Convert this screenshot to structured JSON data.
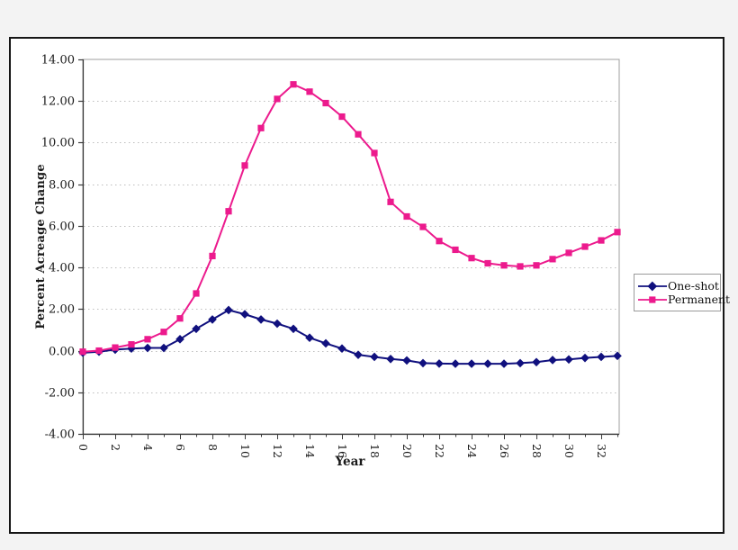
{
  "page": {
    "background": "#f3f3f3",
    "frame_border_color": "#161616",
    "plot_border_color": "#9f9f9f",
    "gridline_color": "#bdbdbd",
    "axis_color": "#3a3a3a",
    "tick_label_color": "#1a1a1a"
  },
  "chart_data": {
    "type": "line",
    "title": "",
    "xlabel": "Year",
    "ylabel": "Percent Acreage Change",
    "x": [
      0,
      1,
      2,
      3,
      4,
      5,
      6,
      7,
      8,
      9,
      10,
      11,
      12,
      13,
      14,
      15,
      16,
      17,
      18,
      19,
      20,
      21,
      22,
      23,
      24,
      25,
      26,
      27,
      28,
      29,
      30,
      31,
      32,
      33
    ],
    "series": [
      {
        "name": "One-shot",
        "color": "#10107e",
        "marker": "diamond",
        "values": [
          -0.1,
          -0.05,
          0.05,
          0.1,
          0.13,
          0.13,
          0.55,
          1.05,
          1.5,
          1.95,
          1.75,
          1.5,
          1.3,
          1.05,
          0.62,
          0.35,
          0.1,
          -0.2,
          -0.3,
          -0.4,
          -0.47,
          -0.6,
          -0.62,
          -0.63,
          -0.63,
          -0.63,
          -0.63,
          -0.6,
          -0.55,
          -0.45,
          -0.42,
          -0.35,
          -0.3,
          -0.25
        ]
      },
      {
        "name": "Permanent",
        "color": "#ec1a8d",
        "marker": "square",
        "values": [
          -0.05,
          0.0,
          0.15,
          0.3,
          0.55,
          0.9,
          1.55,
          2.75,
          4.55,
          6.7,
          8.9,
          10.7,
          12.1,
          12.8,
          12.45,
          11.9,
          11.25,
          10.4,
          9.5,
          7.15,
          6.45,
          5.95,
          5.27,
          4.85,
          4.45,
          4.2,
          4.1,
          4.05,
          4.1,
          4.4,
          4.7,
          5.0,
          5.3,
          5.7
        ]
      }
    ],
    "ylim": [
      -4,
      14
    ],
    "ytick_step": 2,
    "ytick_format_decimals": 2,
    "xtick_label_step": 2,
    "xtick_minor_step": 1,
    "grid": "horizontal-dotted",
    "legend_position": "right",
    "x_labels_rotated_90": true
  }
}
